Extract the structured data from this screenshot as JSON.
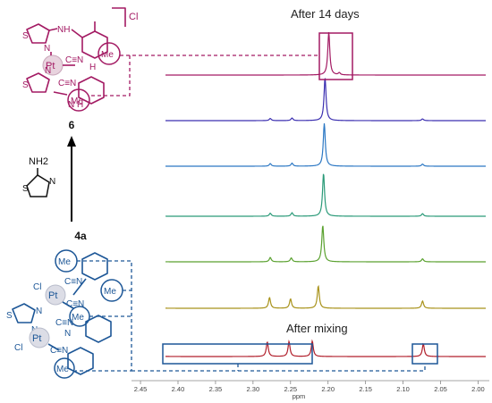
{
  "figure": {
    "top_caption": "After 14 days",
    "bottom_caption": "After mixing",
    "x_axis_label": "ppm",
    "x_ticks": [
      "2.45",
      "2.40",
      "2.35",
      "2.30",
      "2.25",
      "2.20",
      "2.15",
      "2.10",
      "2.05",
      "2.00"
    ],
    "compound_top_number": "6",
    "compound_bottom_number": "4a",
    "counter_ion": "Cl",
    "reagent_group": "NH2",
    "atoms": {
      "pt": "Pt",
      "cl": "Cl",
      "me": "Me",
      "n": "N",
      "s": "S",
      "h": "H",
      "nh": "NH",
      "cn": "C≡N"
    }
  },
  "colors": {
    "compound6": "#a31a63",
    "compound4a": "#1d5797",
    "spectra": [
      "#a31a63",
      "#3b2fb0",
      "#2c78c4",
      "#2a9a78",
      "#5aa12f",
      "#a8921a",
      "#b11f2b"
    ]
  },
  "chart_data": {
    "type": "line",
    "xlabel": "ppm",
    "xlim": [
      2.462,
      1.985
    ],
    "x_reversed": true,
    "ticks": [
      2.45,
      2.4,
      2.35,
      2.3,
      2.25,
      2.2,
      2.15,
      2.1,
      2.05,
      2.0
    ],
    "series": [
      {
        "peaks": [
          {
            "x": 2.199,
            "h": 1.0
          },
          {
            "x": 2.185,
            "h": 0.05
          }
        ]
      },
      {
        "peaks": [
          {
            "x": 2.432,
            "h": 0.05
          },
          {
            "x": 2.277,
            "h": 0.05
          },
          {
            "x": 2.248,
            "h": 0.06
          },
          {
            "x": 2.204,
            "h": 1.0
          },
          {
            "x": 2.074,
            "h": 0.04
          }
        ]
      },
      {
        "peaks": [
          {
            "x": 2.432,
            "h": 0.06
          },
          {
            "x": 2.277,
            "h": 0.06
          },
          {
            "x": 2.248,
            "h": 0.07
          },
          {
            "x": 2.205,
            "h": 1.0
          },
          {
            "x": 2.074,
            "h": 0.05
          }
        ]
      },
      {
        "peaks": [
          {
            "x": 2.432,
            "h": 0.07
          },
          {
            "x": 2.277,
            "h": 0.07
          },
          {
            "x": 2.248,
            "h": 0.08
          },
          {
            "x": 2.206,
            "h": 1.0
          },
          {
            "x": 2.074,
            "h": 0.06
          }
        ]
      },
      {
        "peaks": [
          {
            "x": 2.432,
            "h": 0.1
          },
          {
            "x": 2.277,
            "h": 0.1
          },
          {
            "x": 2.249,
            "h": 0.09
          },
          {
            "x": 2.207,
            "h": 0.85
          },
          {
            "x": 2.074,
            "h": 0.07
          }
        ]
      },
      {
        "peaks": [
          {
            "x": 2.433,
            "h": 0.22
          },
          {
            "x": 2.278,
            "h": 0.25
          },
          {
            "x": 2.25,
            "h": 0.22
          },
          {
            "x": 2.213,
            "h": 0.52
          },
          {
            "x": 2.074,
            "h": 0.17
          }
        ]
      },
      {
        "peaks": [
          {
            "x": 2.434,
            "h": 0.32
          },
          {
            "x": 2.281,
            "h": 0.34
          },
          {
            "x": 2.252,
            "h": 0.35
          },
          {
            "x": 2.221,
            "h": 0.36
          },
          {
            "x": 2.073,
            "h": 0.3
          }
        ]
      }
    ]
  }
}
